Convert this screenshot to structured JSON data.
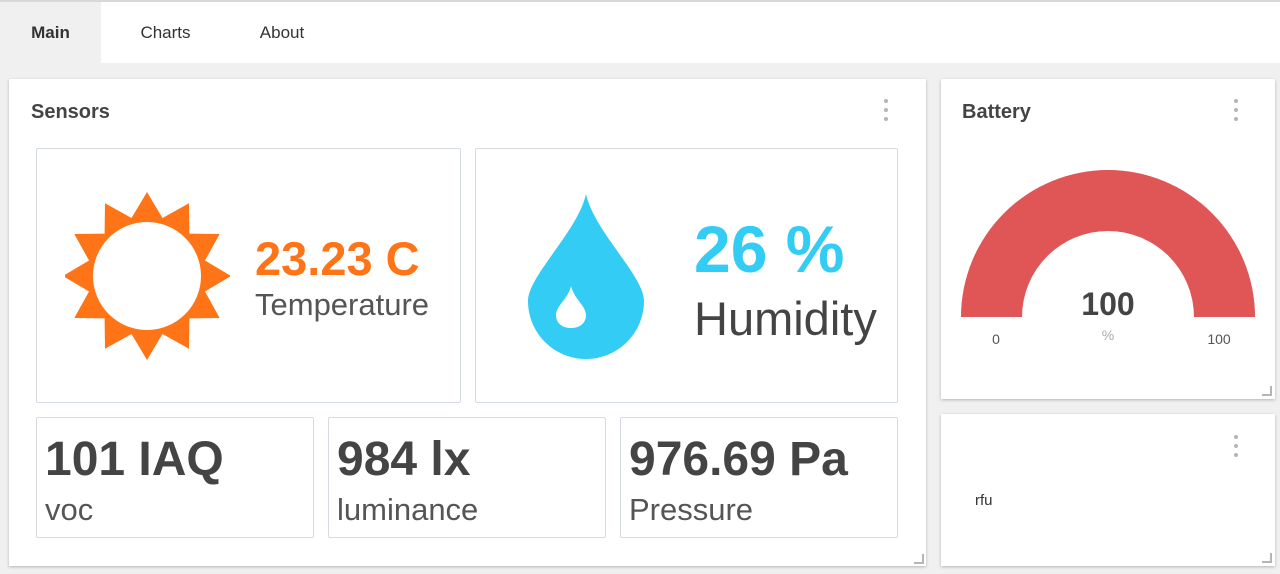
{
  "tabs": [
    {
      "label": "Main",
      "active": true
    },
    {
      "label": "Charts",
      "active": false
    },
    {
      "label": "About",
      "active": false
    }
  ],
  "sensors": {
    "title": "Sensors",
    "temperature": {
      "value": "23.23 C",
      "label": "Temperature",
      "color": "#ff7416",
      "icon": "sun-icon"
    },
    "humidity": {
      "value": "26 %",
      "label": "Humidity",
      "color": "#33ccf5",
      "icon": "water-drop-icon"
    },
    "voc": {
      "value": "101 IAQ",
      "label": "voc"
    },
    "luminance": {
      "value": "984 lx",
      "label": "luminance"
    },
    "pressure": {
      "value": "976.69 Pa",
      "label": "Pressure"
    }
  },
  "battery": {
    "title": "Battery",
    "value": "100",
    "unit": "%",
    "min": "0",
    "max": "100",
    "level": 1.0,
    "gauge_color": "#e05555"
  },
  "rfu": {
    "label": "rfu"
  },
  "colors": {
    "text_dark": "#444444",
    "text_muted": "#555555",
    "background": "#f0f0f0"
  }
}
